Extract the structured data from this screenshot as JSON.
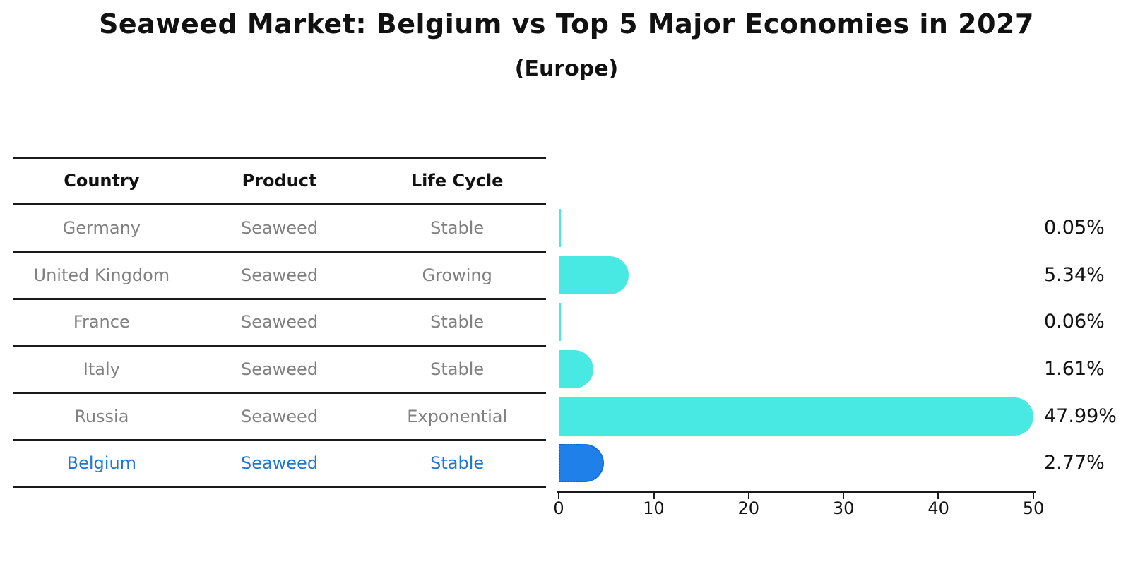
{
  "title": "Seaweed Market: Belgium vs Top 5 Major Economies in 2027",
  "subtitle": "(Europe)",
  "table": {
    "headers": [
      "Country",
      "Product",
      "Life Cycle"
    ],
    "rows": [
      {
        "country": "Germany",
        "product": "Seaweed",
        "life_cycle": "Stable"
      },
      {
        "country": "United Kingdom",
        "product": "Seaweed",
        "life_cycle": "Growing"
      },
      {
        "country": "France",
        "product": "Seaweed",
        "life_cycle": "Stable"
      },
      {
        "country": "Italy",
        "product": "Seaweed",
        "life_cycle": "Stable"
      },
      {
        "country": "Russia",
        "product": "Seaweed",
        "life_cycle": "Exponential"
      },
      {
        "country": "Belgium",
        "product": "Seaweed",
        "life_cycle": "Stable"
      }
    ]
  },
  "chart_data": {
    "type": "bar",
    "orientation": "horizontal",
    "title": "Seaweed Market: Belgium vs Top 5 Major Economies in 2027",
    "subtitle": "(Europe)",
    "categories": [
      "Germany",
      "United Kingdom",
      "France",
      "Italy",
      "Russia",
      "Belgium"
    ],
    "values": [
      0.05,
      5.34,
      0.06,
      1.61,
      47.99,
      2.77
    ],
    "value_labels": [
      "0.05%",
      "5.34%",
      "0.06%",
      "1.61%",
      "47.99%",
      "2.77%"
    ],
    "xticks": [
      0,
      10,
      20,
      30,
      40,
      50
    ],
    "xlim": [
      0,
      50
    ],
    "grid": false,
    "legend": false,
    "highlight_category": "Belgium",
    "colors": {
      "bar": "#48e9e2",
      "highlight_bar": "#1e80e8",
      "highlight_text": "#1f77d0",
      "row_text": "#808080",
      "axis": "#1a1a1a"
    }
  }
}
